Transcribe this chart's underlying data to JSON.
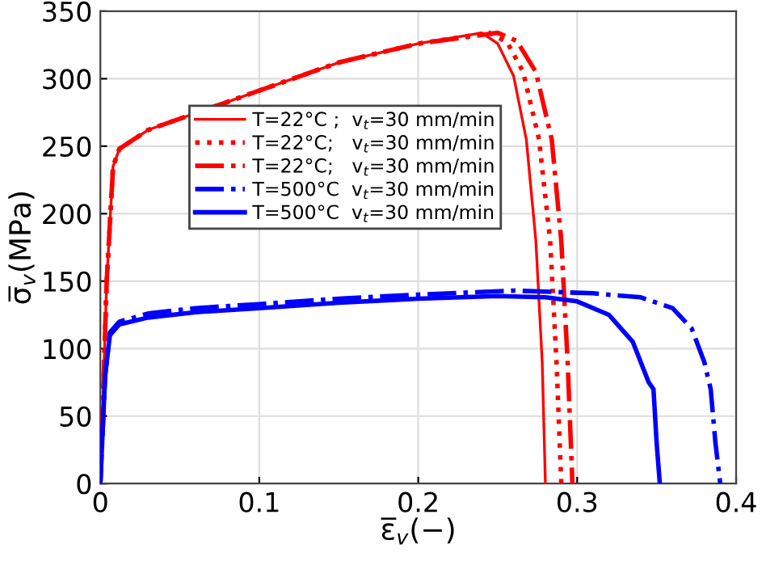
{
  "chart_data": {
    "type": "line",
    "xlabel": "ε̅$_{v}$(−)",
    "ylabel": "σ̅$_{v}$(MPa)",
    "xlim": [
      0,
      0.4
    ],
    "ylim": [
      0,
      350
    ],
    "xticks": [
      0,
      0.1,
      0.2,
      0.3,
      0.4
    ],
    "yticks": [
      0,
      50,
      100,
      150,
      200,
      250,
      300,
      350
    ],
    "grid": true,
    "legend": "top",
    "marker": "none",
    "series": [
      {
        "name": "T=22°C ;  v$_{t}$=30 mm/min",
        "color": "#ff0000",
        "line_style": "solid",
        "x": [
          0,
          0.004,
          0.008,
          0.012,
          0.03,
          0.15,
          0.2,
          0.24,
          0.25,
          0.26,
          0.268,
          0.274,
          0.278,
          0.28
        ],
        "values": [
          0,
          150,
          235,
          248,
          262,
          312,
          326,
          334,
          326,
          302,
          255,
          180,
          90,
          0
        ]
      },
      {
        "name": "T=22°C;   v$_{t}$=30 mm/min",
        "color": "#ff0000",
        "line_style": "dotted",
        "x": [
          0,
          0.004,
          0.008,
          0.012,
          0.03,
          0.15,
          0.2,
          0.245,
          0.256,
          0.266,
          0.276,
          0.283,
          0.287,
          0.29
        ],
        "values": [
          0,
          150,
          235,
          248,
          262,
          312,
          326,
          334,
          327,
          305,
          255,
          180,
          90,
          0
        ]
      },
      {
        "name": "T=22°C;   v$_{t}$=30 mm/min",
        "color": "#ff0000",
        "line_style": "dashdot",
        "x": [
          0,
          0.004,
          0.008,
          0.012,
          0.03,
          0.15,
          0.2,
          0.25,
          0.262,
          0.274,
          0.284,
          0.29,
          0.294,
          0.297
        ],
        "values": [
          0,
          150,
          235,
          248,
          262,
          312,
          326,
          334,
          328,
          305,
          255,
          180,
          90,
          0
        ]
      },
      {
        "name": "T=500°C  v$_{t}$=30 mm/min",
        "color": "#0000ff",
        "line_style": "dashdot",
        "x": [
          0,
          0.003,
          0.006,
          0.012,
          0.03,
          0.06,
          0.1,
          0.15,
          0.2,
          0.26,
          0.31,
          0.34,
          0.36,
          0.372,
          0.38,
          0.384,
          0.387,
          0.39
        ],
        "values": [
          0,
          80,
          112,
          120,
          126,
          130,
          133,
          137,
          140,
          143,
          141,
          138,
          130,
          115,
          90,
          70,
          30,
          0
        ]
      },
      {
        "name": "T=500°C  v$_{t}$=30 mm/min",
        "color": "#0000ff",
        "line_style": "solid",
        "x": [
          0,
          0.003,
          0.006,
          0.012,
          0.03,
          0.06,
          0.1,
          0.15,
          0.2,
          0.25,
          0.28,
          0.3,
          0.32,
          0.335,
          0.345,
          0.348,
          0.35,
          0.352
        ],
        "values": [
          0,
          80,
          110,
          118,
          123,
          127,
          130,
          134,
          137,
          139,
          138,
          135,
          125,
          105,
          75,
          70,
          30,
          0
        ]
      }
    ]
  }
}
